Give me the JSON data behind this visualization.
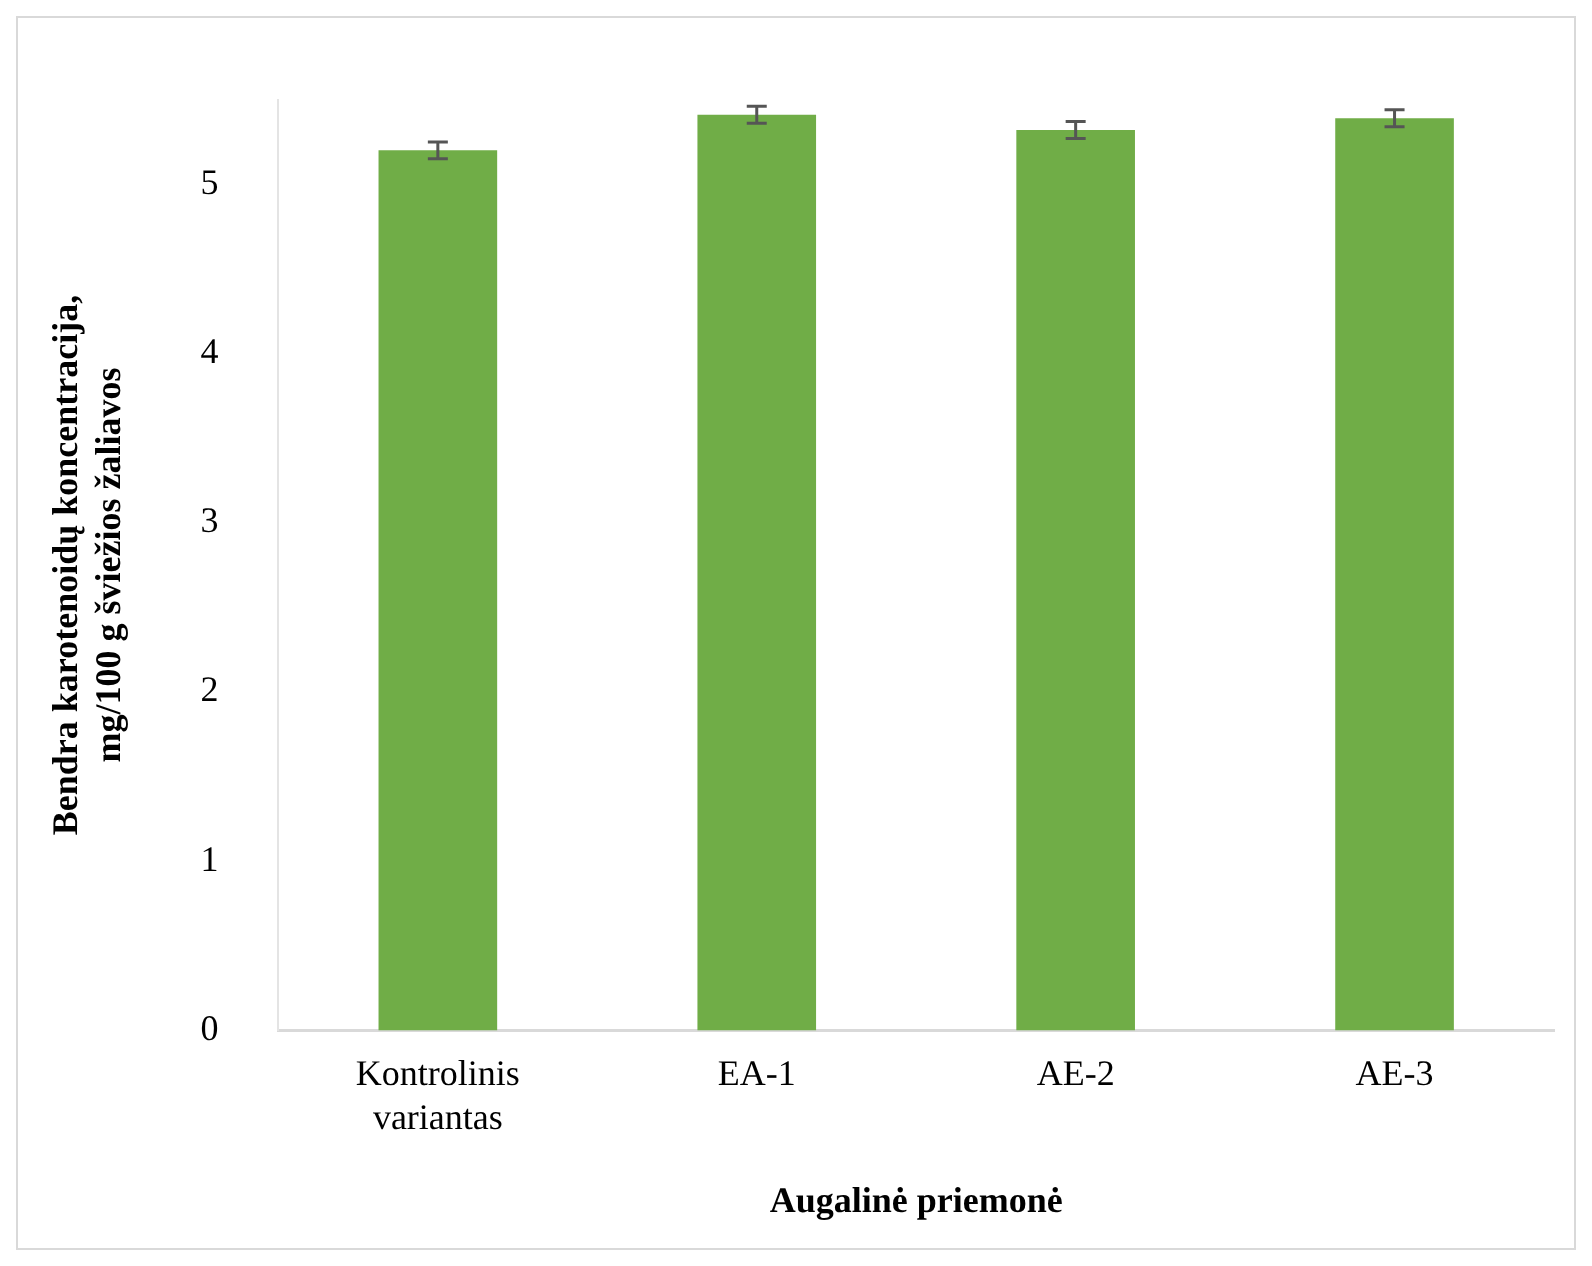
{
  "chart_data": {
    "type": "bar",
    "xlabel": "Augalinė priemonė",
    "ylabel": "Bendra karotenoidų koncentracija, mg/100 g šviežios žaliavos",
    "categories": [
      "Kontrolinis\nvariantas",
      "EA-1",
      "AE-2",
      "AE-3"
    ],
    "values": [
      5.2,
      5.41,
      5.32,
      5.39
    ],
    "errors": [
      0.05,
      0.05,
      0.05,
      0.05
    ],
    "color": "#70ad47",
    "ylim": [
      0,
      5.5
    ],
    "yticks": [
      0,
      1,
      2,
      3,
      4,
      5
    ],
    "grid": false,
    "legend": false
  }
}
